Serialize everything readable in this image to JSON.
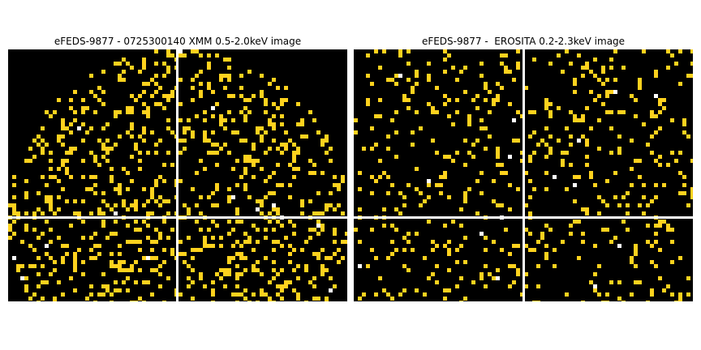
{
  "panels": [
    {
      "title": "eFEDS-9877 - 0725300140 XMM 0.5-2.0keV image",
      "image": {
        "colormap": "black-to-yellow counts",
        "crosshair_color": "#ffffff"
      }
    },
    {
      "title": "eFEDS-9877 -  EROSITA 0.2-2.3keV image",
      "image": {
        "colormap": "black-to-yellow counts",
        "crosshair_color": "#ffffff"
      }
    }
  ],
  "colors": {
    "background": "#000000",
    "pixel_low": "#ffd21e",
    "pixel_high": "#ffffff"
  }
}
